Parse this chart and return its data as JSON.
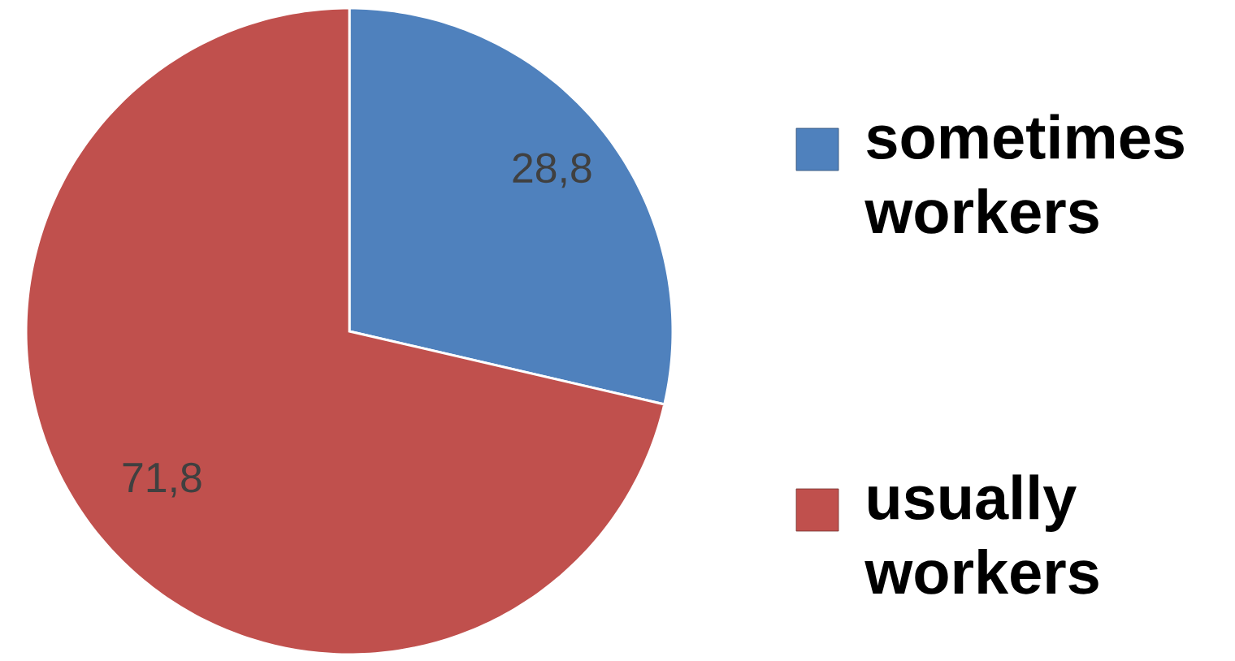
{
  "chart_data": {
    "type": "pie",
    "categories": [
      "sometimes workers",
      "usually workers"
    ],
    "values": [
      28.8,
      71.8
    ],
    "value_labels": [
      "28,8",
      "71,8"
    ],
    "colors": [
      "#4f81bd",
      "#c0504d"
    ],
    "legend": "right"
  }
}
